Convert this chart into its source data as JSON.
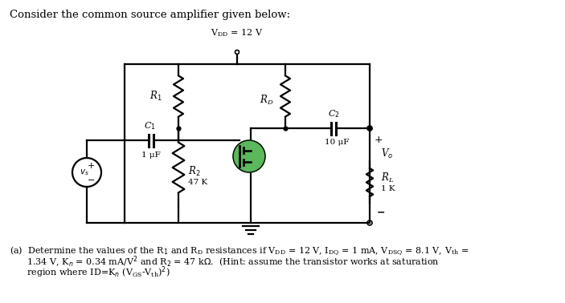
{
  "title_text": "Consider the common source amplifier given below:",
  "mosfet_color": "#5cb85c",
  "bg_color": "#ffffff",
  "wire_color": "#000000",
  "caption_line1": "(a)  Determine the values of the R",
  "caption_line2": "      1.34 V, K",
  "caption_line3": "      region where ID=K"
}
